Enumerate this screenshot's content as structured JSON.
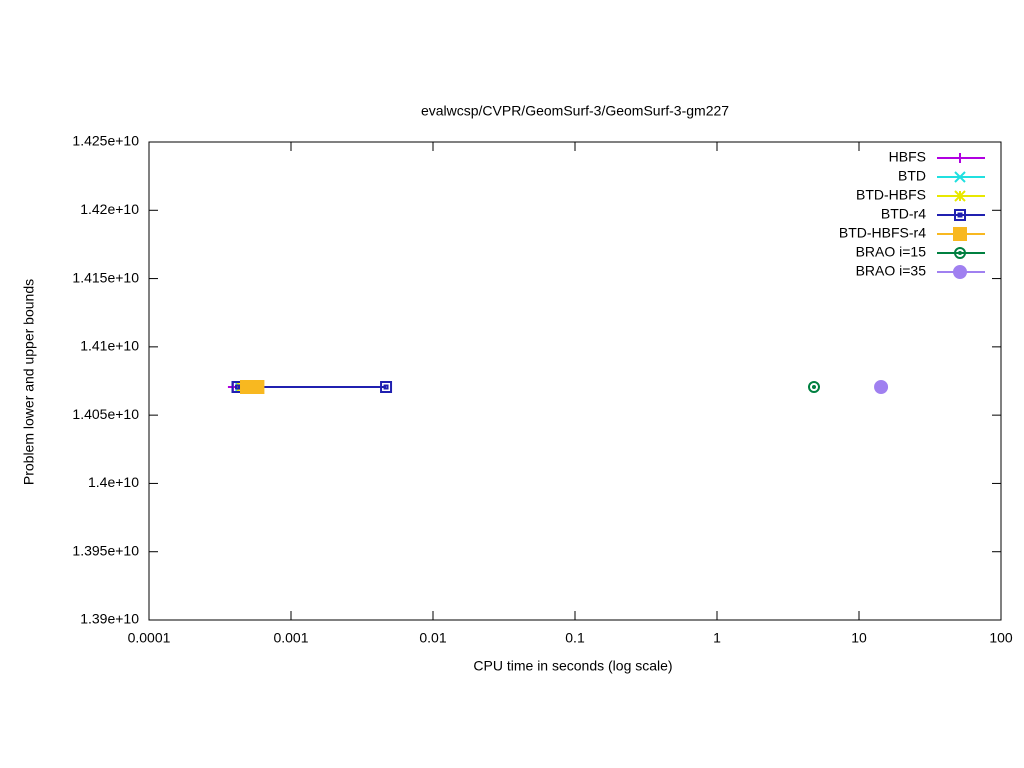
{
  "chart_data": {
    "type": "line",
    "title": "evalwcsp/CVPR/GeomSurf-3/GeomSurf-3-gm227",
    "x_label": "CPU time in seconds (log scale)",
    "y_label": "Problem lower and upper bounds",
    "x_scale": "log",
    "xlim": [
      0.0001,
      100
    ],
    "xticks": [
      0.0001,
      0.001,
      0.01,
      0.1,
      1,
      10,
      100
    ],
    "ylim": [
      13900000000,
      14250000000
    ],
    "yticks": [
      {
        "value": 13900000000,
        "label": "1.39e+10"
      },
      {
        "value": 13950000000,
        "label": "1.395e+10"
      },
      {
        "value": 14000000000,
        "label": "1.4e+10"
      },
      {
        "value": 14050000000,
        "label": "1.405e+10"
      },
      {
        "value": 14100000000,
        "label": "1.41e+10"
      },
      {
        "value": 14150000000,
        "label": "1.415e+10"
      },
      {
        "value": 14200000000,
        "label": "1.42e+10"
      },
      {
        "value": 14250000000,
        "label": "1.425e+10"
      }
    ],
    "legend": "top-right",
    "series": [
      {
        "name": "HBFS",
        "color": "#b000e0",
        "marker": "plus",
        "x": [
          0.00039
        ],
        "values": [
          14070600000
        ]
      },
      {
        "name": "BTD",
        "color": "#20e0e0",
        "marker": "cross",
        "x": [
          0.00044
        ],
        "values": [
          14070600000
        ]
      },
      {
        "name": "BTD-HBFS",
        "color": "#e8e800",
        "marker": "star",
        "x": [
          0.00045
        ],
        "values": [
          14070600000
        ]
      },
      {
        "name": "BTD-r4",
        "color": "#2020b0",
        "marker": "open-square",
        "x": [
          0.00042,
          0.00467
        ],
        "values": [
          14070600000,
          14070600000
        ]
      },
      {
        "name": "BTD-HBFS-r4",
        "color": "#f8b820",
        "marker": "filled-square",
        "x": [
          0.00049,
          0.00058
        ],
        "values": [
          14070600000,
          14070600000
        ]
      },
      {
        "name": "BRAO i=15",
        "color": "#008040",
        "marker": "dot-circle",
        "x": [
          4.82
        ],
        "values": [
          14070600000
        ]
      },
      {
        "name": "BRAO i=35",
        "color": "#a080f0",
        "marker": "filled-circle",
        "x": [
          14.3
        ],
        "values": [
          14070600000
        ]
      }
    ]
  }
}
